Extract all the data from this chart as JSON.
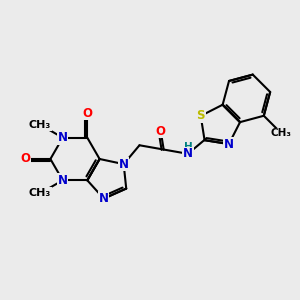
{
  "background_color": "#ebebeb",
  "bond_color": "#000000",
  "N_color": "#0000cc",
  "O_color": "#ff0000",
  "S_color": "#bbbb00",
  "H_color": "#008080",
  "line_width": 1.5,
  "font_size": 8.5,
  "figsize": [
    3.0,
    3.0
  ],
  "dpi": 100,
  "xlim": [
    0,
    10
  ],
  "ylim": [
    0,
    10
  ]
}
